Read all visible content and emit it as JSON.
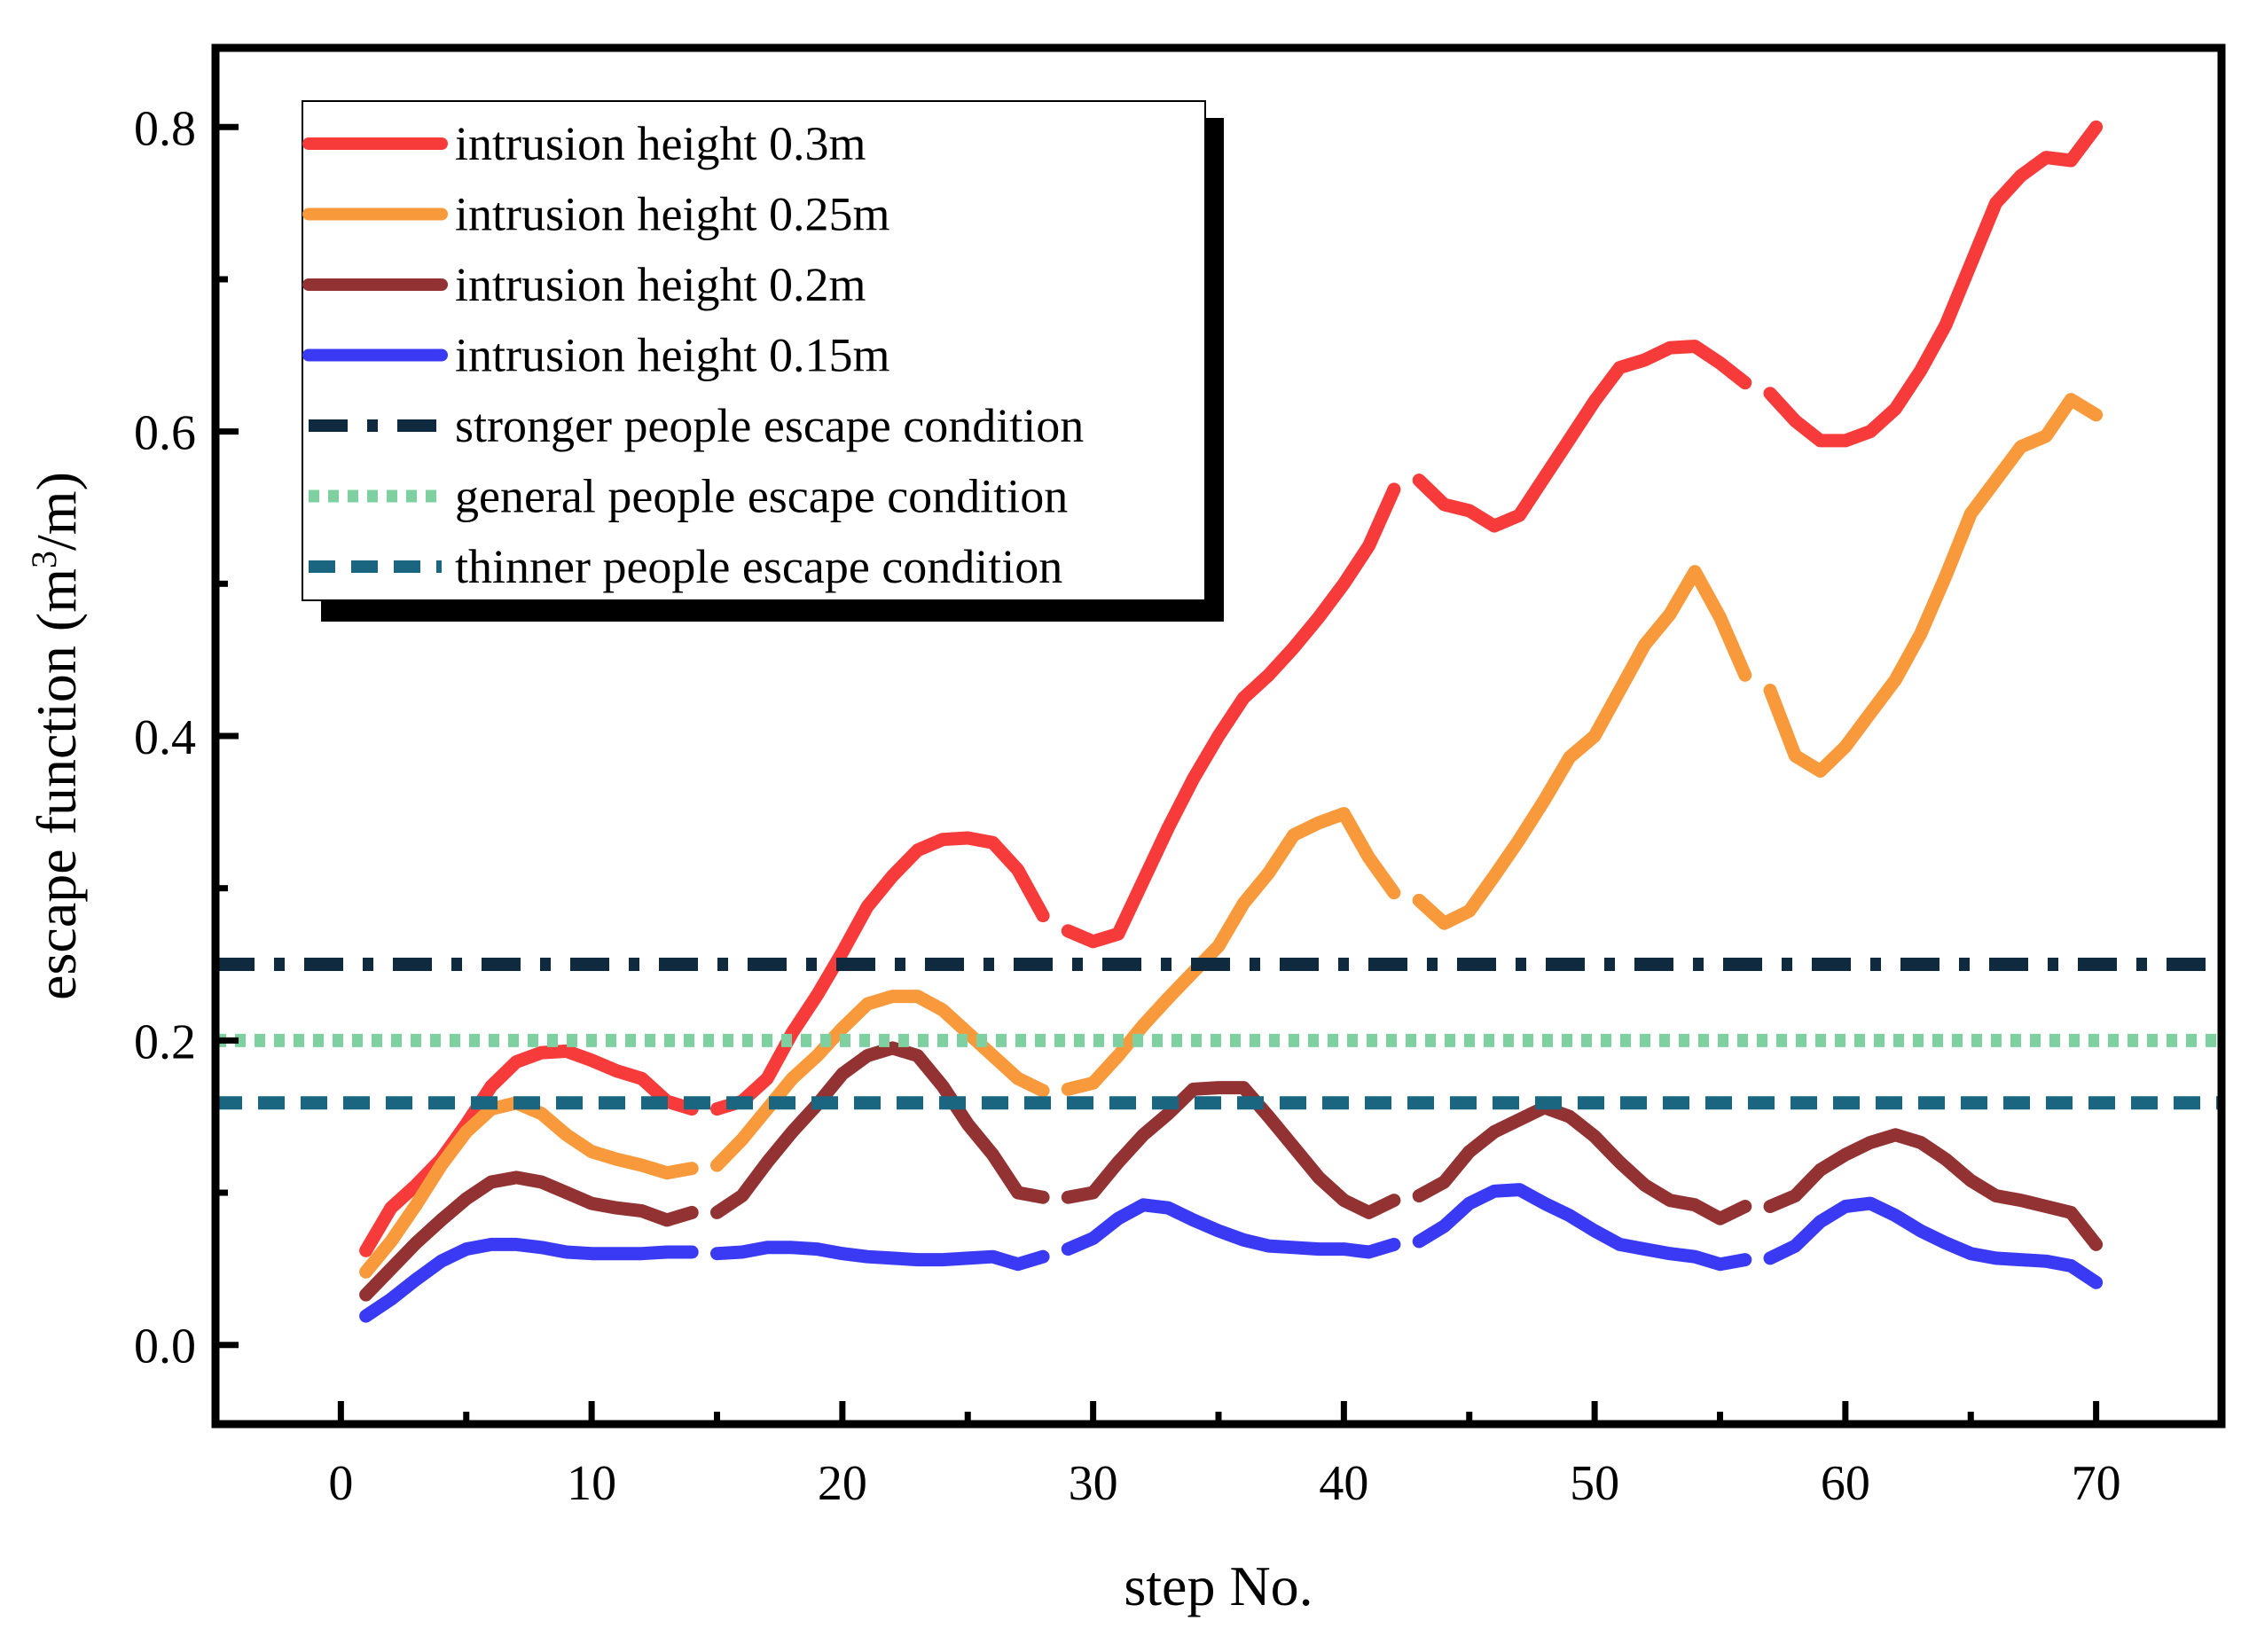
{
  "chart_data": {
    "type": "line",
    "xlabel": "step No.",
    "ylabel": "escape function (m³/m)",
    "ylabel_parts": {
      "pre": "escape function (m",
      "sup": "3",
      "post": "/m)"
    },
    "xlim": [
      -5,
      75
    ],
    "ylim": [
      -0.052,
      0.852
    ],
    "xticks": [
      0,
      10,
      20,
      30,
      40,
      50,
      60,
      70
    ],
    "yticks": [
      0.0,
      0.2,
      0.4,
      0.6,
      0.8
    ],
    "xtick_labels": [
      "0",
      "10",
      "20",
      "30",
      "40",
      "50",
      "60",
      "70"
    ],
    "ytick_labels": [
      "0.0",
      "0.2",
      "0.4",
      "0.6",
      "0.8"
    ],
    "xminor": [
      5,
      15,
      25,
      35,
      45,
      55,
      65
    ],
    "yminor": [
      0.1,
      0.3,
      0.5,
      0.7
    ],
    "x": [
      1,
      2,
      3,
      4,
      5,
      6,
      7,
      8,
      9,
      10,
      11,
      12,
      13,
      14,
      15,
      16,
      17,
      18,
      19,
      20,
      21,
      22,
      23,
      24,
      25,
      26,
      27,
      28,
      29,
      30,
      31,
      32,
      33,
      34,
      35,
      36,
      37,
      38,
      39,
      40,
      41,
      42,
      43,
      44,
      45,
      46,
      47,
      48,
      49,
      50,
      51,
      52,
      53,
      54,
      55,
      56,
      57,
      58,
      59,
      60,
      61,
      62,
      63,
      64,
      65,
      66,
      67,
      68,
      69,
      70
    ],
    "segment_breaks": [
      14,
      28,
      42,
      56
    ],
    "series": [
      {
        "name": "intrusion height 0.3m",
        "color": "#f73a3a",
        "style": "solid",
        "values": [
          0.062,
          0.09,
          0.105,
          0.122,
          0.145,
          0.17,
          0.186,
          0.192,
          0.193,
          0.187,
          0.18,
          0.175,
          0.16,
          0.155,
          0.155,
          0.16,
          0.175,
          0.205,
          0.23,
          0.258,
          0.288,
          0.308,
          0.325,
          0.332,
          0.333,
          0.33,
          0.312,
          0.282,
          0.272,
          0.265,
          0.27,
          0.305,
          0.34,
          0.372,
          0.4,
          0.425,
          0.44,
          0.458,
          0.478,
          0.5,
          0.525,
          0.562,
          0.568,
          0.552,
          0.548,
          0.538,
          0.545,
          0.57,
          0.595,
          0.62,
          0.642,
          0.647,
          0.655,
          0.656,
          0.645,
          0.632,
          0.625,
          0.607,
          0.594,
          0.594,
          0.6,
          0.615,
          0.64,
          0.67,
          0.71,
          0.75,
          0.768,
          0.78,
          0.778,
          0.8
        ]
      },
      {
        "name": "intrusion height 0.25m",
        "color": "#f89a3c",
        "style": "solid",
        "values": [
          0.048,
          0.068,
          0.092,
          0.118,
          0.14,
          0.155,
          0.159,
          0.152,
          0.138,
          0.127,
          0.122,
          0.118,
          0.113,
          0.116,
          0.118,
          0.135,
          0.155,
          0.175,
          0.19,
          0.208,
          0.224,
          0.229,
          0.229,
          0.22,
          0.205,
          0.19,
          0.175,
          0.167,
          0.168,
          0.172,
          0.19,
          0.21,
          0.228,
          0.245,
          0.262,
          0.29,
          0.31,
          0.335,
          0.343,
          0.349,
          0.32,
          0.297,
          0.292,
          0.277,
          0.285,
          0.308,
          0.332,
          0.358,
          0.386,
          0.4,
          0.43,
          0.46,
          0.48,
          0.508,
          0.478,
          0.44,
          0.43,
          0.387,
          0.377,
          0.393,
          0.415,
          0.437,
          0.467,
          0.505,
          0.546,
          0.568,
          0.59,
          0.597,
          0.621,
          0.611
        ]
      },
      {
        "name": "intrusion height 0.2m",
        "color": "#933232",
        "style": "solid",
        "values": [
          0.033,
          0.05,
          0.067,
          0.082,
          0.096,
          0.107,
          0.11,
          0.107,
          0.1,
          0.093,
          0.09,
          0.088,
          0.082,
          0.087,
          0.087,
          0.098,
          0.12,
          0.14,
          0.158,
          0.178,
          0.19,
          0.195,
          0.19,
          0.17,
          0.145,
          0.125,
          0.1,
          0.097,
          0.097,
          0.1,
          0.12,
          0.138,
          0.152,
          0.168,
          0.169,
          0.169,
          0.15,
          0.13,
          0.11,
          0.095,
          0.087,
          0.095,
          0.098,
          0.107,
          0.127,
          0.14,
          0.148,
          0.156,
          0.15,
          0.137,
          0.12,
          0.105,
          0.095,
          0.092,
          0.083,
          0.091,
          0.091,
          0.098,
          0.115,
          0.125,
          0.133,
          0.138,
          0.133,
          0.122,
          0.108,
          0.098,
          0.095,
          0.091,
          0.087,
          0.066
        ]
      },
      {
        "name": "intrusion height 0.15m",
        "color": "#3a3af5",
        "style": "solid",
        "values": [
          0.019,
          0.03,
          0.043,
          0.055,
          0.063,
          0.066,
          0.066,
          0.064,
          0.061,
          0.06,
          0.06,
          0.06,
          0.061,
          0.061,
          0.06,
          0.061,
          0.064,
          0.064,
          0.063,
          0.06,
          0.058,
          0.057,
          0.056,
          0.056,
          0.057,
          0.058,
          0.053,
          0.058,
          0.063,
          0.07,
          0.083,
          0.092,
          0.09,
          0.082,
          0.075,
          0.069,
          0.065,
          0.064,
          0.063,
          0.063,
          0.061,
          0.066,
          0.068,
          0.078,
          0.093,
          0.101,
          0.102,
          0.093,
          0.085,
          0.075,
          0.066,
          0.063,
          0.06,
          0.058,
          0.053,
          0.056,
          0.057,
          0.065,
          0.081,
          0.091,
          0.093,
          0.085,
          0.075,
          0.067,
          0.06,
          0.057,
          0.056,
          0.055,
          0.052,
          0.041
        ]
      },
      {
        "name": "stronger people escape condition",
        "color": "#0f2a3e",
        "style": "dashdot",
        "constant": 0.25
      },
      {
        "name": "general people escape condition",
        "color": "#7fd0a0",
        "style": "dotted",
        "constant": 0.2
      },
      {
        "name": "thinner people escape condition",
        "color": "#1a6680",
        "style": "dashed",
        "constant": 0.159
      }
    ],
    "legend_position": "top-left",
    "grid": false
  }
}
